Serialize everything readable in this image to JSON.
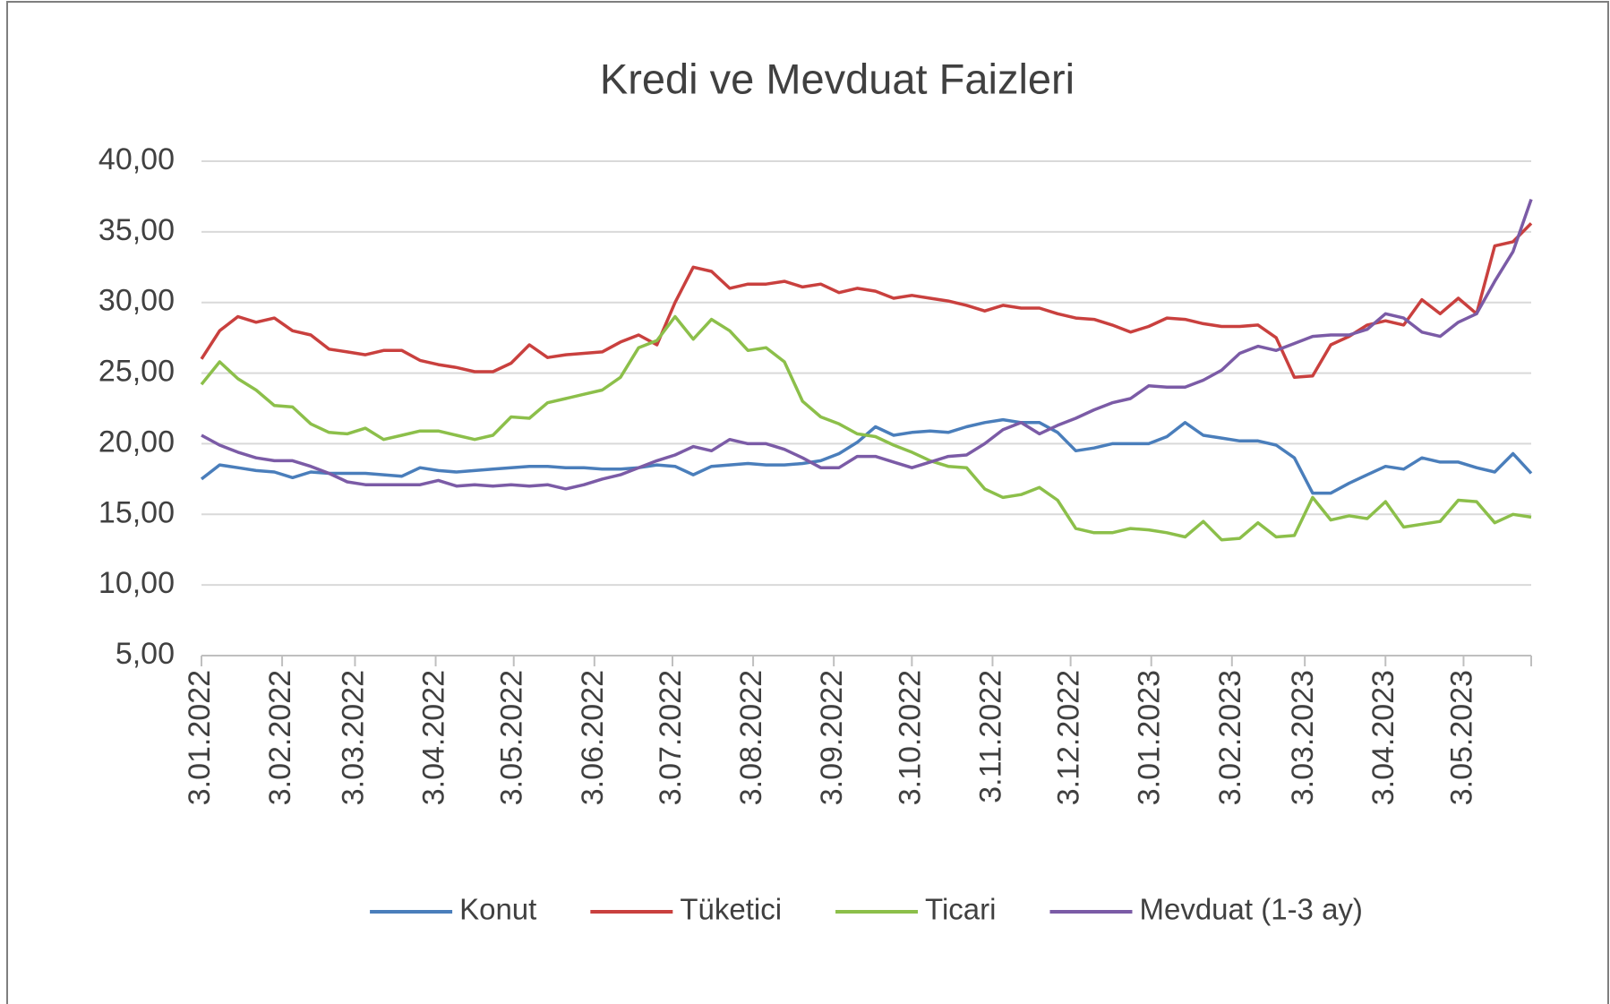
{
  "chart_data": {
    "type": "line",
    "title": "Kredi ve Mevduat Faizleri",
    "x": [
      "2022-01-03",
      "2022-01-10",
      "2022-01-17",
      "2022-01-24",
      "2022-01-31",
      "2022-02-07",
      "2022-02-14",
      "2022-02-21",
      "2022-02-28",
      "2022-03-07",
      "2022-03-14",
      "2022-03-21",
      "2022-03-28",
      "2022-04-04",
      "2022-04-11",
      "2022-04-18",
      "2022-04-25",
      "2022-05-02",
      "2022-05-09",
      "2022-05-16",
      "2022-05-23",
      "2022-05-30",
      "2022-06-06",
      "2022-06-13",
      "2022-06-20",
      "2022-06-27",
      "2022-07-04",
      "2022-07-11",
      "2022-07-18",
      "2022-07-25",
      "2022-08-01",
      "2022-08-08",
      "2022-08-15",
      "2022-08-22",
      "2022-08-29",
      "2022-09-05",
      "2022-09-12",
      "2022-09-19",
      "2022-09-26",
      "2022-10-03",
      "2022-10-10",
      "2022-10-17",
      "2022-10-24",
      "2022-10-31",
      "2022-11-07",
      "2022-11-14",
      "2022-11-21",
      "2022-11-28",
      "2022-12-05",
      "2022-12-12",
      "2022-12-19",
      "2022-12-26",
      "2023-01-02",
      "2023-01-09",
      "2023-01-16",
      "2023-01-23",
      "2023-01-30",
      "2023-02-06",
      "2023-02-13",
      "2023-02-20",
      "2023-02-27",
      "2023-03-06",
      "2023-03-13",
      "2023-03-20",
      "2023-03-27",
      "2023-04-03",
      "2023-04-10",
      "2023-04-17",
      "2023-04-24",
      "2023-05-01",
      "2023-05-08",
      "2023-05-15",
      "2023-05-22",
      "2023-05-29"
    ],
    "series": [
      {
        "name": "Konut",
        "color": "#4a7ebb",
        "values": [
          17.5,
          18.5,
          18.3,
          18.1,
          18.0,
          17.6,
          18.0,
          17.9,
          17.9,
          17.9,
          17.8,
          17.7,
          18.3,
          18.1,
          18.0,
          18.1,
          18.2,
          18.3,
          18.4,
          18.4,
          18.3,
          18.3,
          18.2,
          18.2,
          18.3,
          18.5,
          18.4,
          17.8,
          18.4,
          18.5,
          18.6,
          18.5,
          18.5,
          18.6,
          18.8,
          19.3,
          20.1,
          21.2,
          20.6,
          20.8,
          20.9,
          20.8,
          21.2,
          21.5,
          21.7,
          21.5,
          21.5,
          20.8,
          19.5,
          19.7,
          20.0,
          20.0,
          20.0,
          20.5,
          21.5,
          20.6,
          20.4,
          20.2,
          20.2,
          19.9,
          19.0,
          16.5,
          16.5,
          17.2,
          17.8,
          18.4,
          18.2,
          19.0,
          18.7,
          18.7,
          18.3,
          18.0,
          19.3,
          17.9
        ]
      },
      {
        "name": "Tüketici",
        "color": "#c9403e",
        "values": [
          26.0,
          28.0,
          29.0,
          28.6,
          28.9,
          28.0,
          27.7,
          26.7,
          26.5,
          26.3,
          26.6,
          26.6,
          25.9,
          25.6,
          25.4,
          25.1,
          25.1,
          25.7,
          27.0,
          26.1,
          26.3,
          26.4,
          26.5,
          27.2,
          27.7,
          27.0,
          30.0,
          32.5,
          32.2,
          31.0,
          31.3,
          31.3,
          31.5,
          31.1,
          31.3,
          30.7,
          31.0,
          30.8,
          30.3,
          30.5,
          30.3,
          30.1,
          29.8,
          29.4,
          29.8,
          29.6,
          29.6,
          29.2,
          28.9,
          28.8,
          28.4,
          27.9,
          28.3,
          28.9,
          28.8,
          28.5,
          28.3,
          28.3,
          28.4,
          27.5,
          24.7,
          24.8,
          27.0,
          27.6,
          28.4,
          28.7,
          28.4,
          30.2,
          29.2,
          30.3,
          29.2,
          34.0,
          34.3,
          35.6
        ]
      },
      {
        "name": "Ticari",
        "color": "#8cbf4a",
        "values": [
          24.2,
          25.8,
          24.6,
          23.8,
          22.7,
          22.6,
          21.4,
          20.8,
          20.7,
          21.1,
          20.3,
          20.6,
          20.9,
          20.9,
          20.6,
          20.3,
          20.6,
          21.9,
          21.8,
          22.9,
          23.2,
          23.5,
          23.8,
          24.7,
          26.8,
          27.3,
          29.0,
          27.4,
          28.8,
          28.0,
          26.6,
          26.8,
          25.8,
          23.0,
          21.9,
          21.4,
          20.7,
          20.5,
          19.9,
          19.4,
          18.8,
          18.4,
          18.3,
          16.8,
          16.2,
          16.4,
          16.9,
          16.0,
          14.0,
          13.7,
          13.7,
          14.0,
          13.9,
          13.7,
          13.4,
          14.5,
          13.2,
          13.3,
          14.4,
          13.4,
          13.5,
          16.2,
          14.6,
          14.9,
          14.7,
          15.9,
          14.1,
          14.3,
          14.5,
          16.0,
          15.9,
          14.4,
          15.0,
          14.8
        ]
      },
      {
        "name": "Mevduat (1-3 ay)",
        "color": "#7b5ba6",
        "values": [
          20.6,
          19.9,
          19.4,
          19.0,
          18.8,
          18.8,
          18.4,
          17.9,
          17.3,
          17.1,
          17.1,
          17.1,
          17.1,
          17.4,
          17.0,
          17.1,
          17.0,
          17.1,
          17.0,
          17.1,
          16.8,
          17.1,
          17.5,
          17.8,
          18.3,
          18.8,
          19.2,
          19.8,
          19.5,
          20.3,
          20.0,
          20.0,
          19.6,
          19.0,
          18.3,
          18.3,
          19.1,
          19.1,
          18.7,
          18.3,
          18.7,
          19.1,
          19.2,
          20.0,
          21.0,
          21.5,
          20.7,
          21.3,
          21.8,
          22.4,
          22.9,
          23.2,
          24.1,
          24.0,
          24.0,
          24.5,
          25.2,
          26.4,
          26.9,
          26.6,
          27.1,
          27.6,
          27.7,
          27.7,
          28.1,
          29.2,
          28.9,
          27.9,
          27.6,
          28.6,
          29.2,
          31.5,
          33.6,
          37.3
        ]
      }
    ],
    "xlim": [
      "2022-01-03",
      "2023-05-29"
    ],
    "xticks": [
      {
        "value": "2022-01-03",
        "label": "3.01.2022"
      },
      {
        "value": "2022-02-03",
        "label": "3.02.2022"
      },
      {
        "value": "2022-03-03",
        "label": "3.03.2022"
      },
      {
        "value": "2022-04-03",
        "label": "3.04.2022"
      },
      {
        "value": "2022-05-03",
        "label": "3.05.2022"
      },
      {
        "value": "2022-06-03",
        "label": "3.06.2022"
      },
      {
        "value": "2022-07-03",
        "label": "3.07.2022"
      },
      {
        "value": "2022-08-03",
        "label": "3.08.2022"
      },
      {
        "value": "2022-09-03",
        "label": "3.09.2022"
      },
      {
        "value": "2022-10-03",
        "label": "3.10.2022"
      },
      {
        "value": "2022-11-03",
        "label": "3.11.2022"
      },
      {
        "value": "2022-12-03",
        "label": "3.12.2022"
      },
      {
        "value": "2023-01-03",
        "label": "3.01.2023"
      },
      {
        "value": "2023-02-03",
        "label": "3.02.2023"
      },
      {
        "value": "2023-03-03",
        "label": "3.03.2023"
      },
      {
        "value": "2023-04-03",
        "label": "3.04.2023"
      },
      {
        "value": "2023-05-03",
        "label": "3.05.2023"
      }
    ],
    "ylim": [
      5,
      40
    ],
    "yticks": [
      {
        "value": 5,
        "label": "5,00"
      },
      {
        "value": 10,
        "label": "10,00"
      },
      {
        "value": 15,
        "label": "15,00"
      },
      {
        "value": 20,
        "label": "20,00"
      },
      {
        "value": 25,
        "label": "25,00"
      },
      {
        "value": 30,
        "label": "30,00"
      },
      {
        "value": 35,
        "label": "35,00"
      },
      {
        "value": 40,
        "label": "40,00"
      }
    ],
    "grid": true,
    "legend": "bottom"
  }
}
